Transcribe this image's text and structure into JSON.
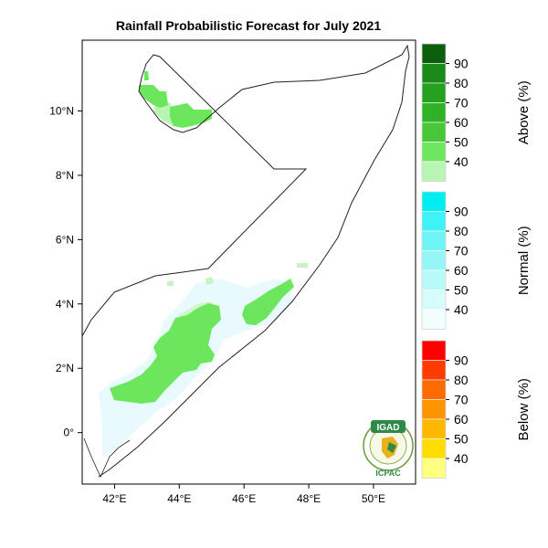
{
  "title": "Rainfall Probabilistic Forecast for July 2021",
  "map": {
    "lon_range": [
      41,
      51.3
    ],
    "lat_range": [
      -1.6,
      12.2
    ],
    "lat_ticks": [
      {
        "value": 10,
        "label": "10°N"
      },
      {
        "value": 8,
        "label": "8°N"
      },
      {
        "value": 6,
        "label": "6°N"
      },
      {
        "value": 4,
        "label": "4°N"
      },
      {
        "value": 2,
        "label": "2°N"
      },
      {
        "value": 0,
        "label": "0°"
      }
    ],
    "lon_ticks": [
      {
        "value": 42,
        "label": "42°E"
      },
      {
        "value": 44,
        "label": "44°E"
      },
      {
        "value": 46,
        "label": "46°E"
      },
      {
        "value": 48,
        "label": "48°E"
      },
      {
        "value": 50,
        "label": "50°E"
      }
    ],
    "colors": {
      "above_40": "#b8f5b0",
      "above_50": "#6ce65c",
      "normal_light": "#e8fafd"
    }
  },
  "legends": [
    {
      "title": "Above (%)",
      "labels": [
        "90",
        "80",
        "70",
        "60",
        "50",
        "40"
      ],
      "colors": [
        "#0b5e0b",
        "#1a8a1a",
        "#25a01f",
        "#2fb225",
        "#48c738",
        "#6ee65f",
        "#b9f5b3"
      ]
    },
    {
      "title": "Normal (%)",
      "labels": [
        "90",
        "80",
        "70",
        "60",
        "50",
        "40"
      ],
      "colors": [
        "#00eef2",
        "#3ff2f5",
        "#6ff4f6",
        "#95f6f7",
        "#b8f9f9",
        "#d7fbfb",
        "#f2fdfd"
      ]
    },
    {
      "title": "Below (%)",
      "labels": [
        "90",
        "80",
        "70",
        "60",
        "50",
        "40"
      ],
      "colors": [
        "#ff0000",
        "#ff3b00",
        "#ff6a00",
        "#ff9400",
        "#ffb800",
        "#ffdd00",
        "#ffff80"
      ]
    }
  ],
  "logo": {
    "top_text": "IGAD",
    "bottom_text": "ICPAC"
  }
}
